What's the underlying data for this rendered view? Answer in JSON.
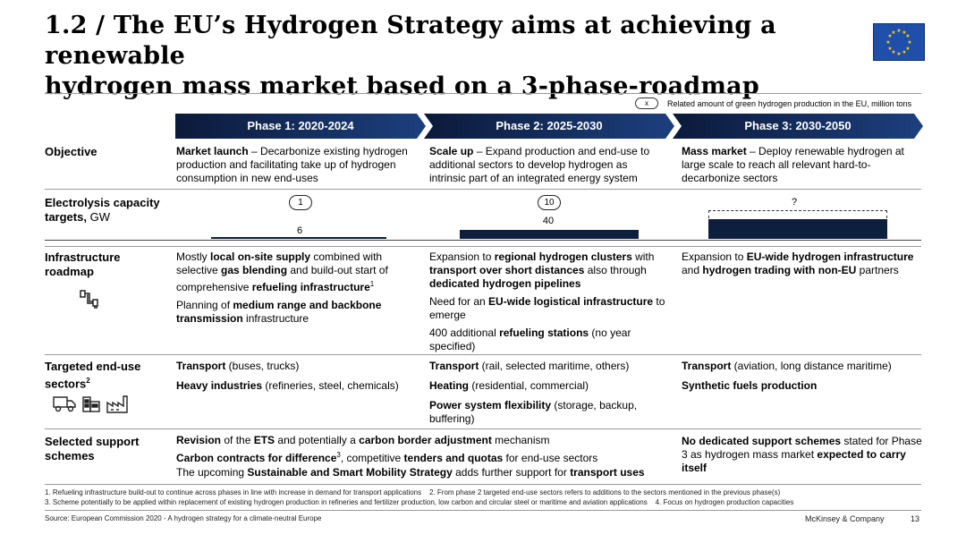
{
  "title": {
    "line1": "1.2 / The EU’s Hydrogen Strategy aims at achieving a renewable",
    "line2": "hydrogen mass market based on a 3-phase-roadmap"
  },
  "legend": {
    "symbol": "x",
    "text": "Related amount of green hydrogen production in the EU, million tons"
  },
  "phases": [
    {
      "label": "Phase 1: 2020-2024"
    },
    {
      "label": "Phase 2: 2025-2030"
    },
    {
      "label": "Phase 3: 2030-2050"
    }
  ],
  "rows": {
    "objective": {
      "label": "Objective",
      "cells": [
        {
          "bold": "Market launch",
          "text": " – Decarbonize existing hydrogen production and facilitating take up of hydrogen consumption in new end-uses"
        },
        {
          "bold": "Scale up",
          "text": " – Expand production and end-use to additional sectors to develop hydrogen as intrinsic part of an integrated energy system"
        },
        {
          "bold": "Mass market",
          "text": " – Deploy renewable hydrogen at large scale to reach all relevant hard-to-decarbonize sectors"
        }
      ]
    },
    "electrolysis": {
      "label_bold": "Electrolysis capacity targets,",
      "label_rest": " GW",
      "ovals": [
        "1",
        "10",
        "?"
      ],
      "values": [
        "6",
        "40",
        ""
      ],
      "gw": [
        6,
        40,
        null
      ]
    },
    "infrastructure": {
      "label_line1": "Infrastructure",
      "label_line2": "roadmap",
      "icon": "pipe-connector-icon"
    },
    "enduse": {
      "label_line1": "Targeted end-use",
      "label_line2": "sectors",
      "label_sup": "2",
      "icons": [
        "truck-icon",
        "building-icon",
        "factory-icon"
      ]
    },
    "support": {
      "label_line1": "Selected support",
      "label_line2": "schemes"
    }
  },
  "footnotes": {
    "line1a": "1. Refueling infrastructure build-out to continue across phases in line with increase in demand for transport applications",
    "line1b": "2. From phase 2 targeted end-use sectors refers to additions to the sectors mentioned in the previous phase(s)",
    "line2a": "3. Scheme potentially to be applied within replacement of existing hydrogen production in refineries and fertilizer production, low carbon and circular steel or maritime and aviation applications",
    "line2b": "4. Focus on hydrogen production capacities",
    "source": "Source: European Commission 2020 - A hydrogen strategy for a climate-neutral Europe",
    "company": "McKinsey & Company",
    "page": "13"
  },
  "colors": {
    "phase_dark": "#0b1a3a",
    "phase_mid": "#1d3f7e",
    "bar": "#0d1f3d",
    "flag_blue": "#1f4fa8",
    "flag_star": "#f5d20a"
  }
}
